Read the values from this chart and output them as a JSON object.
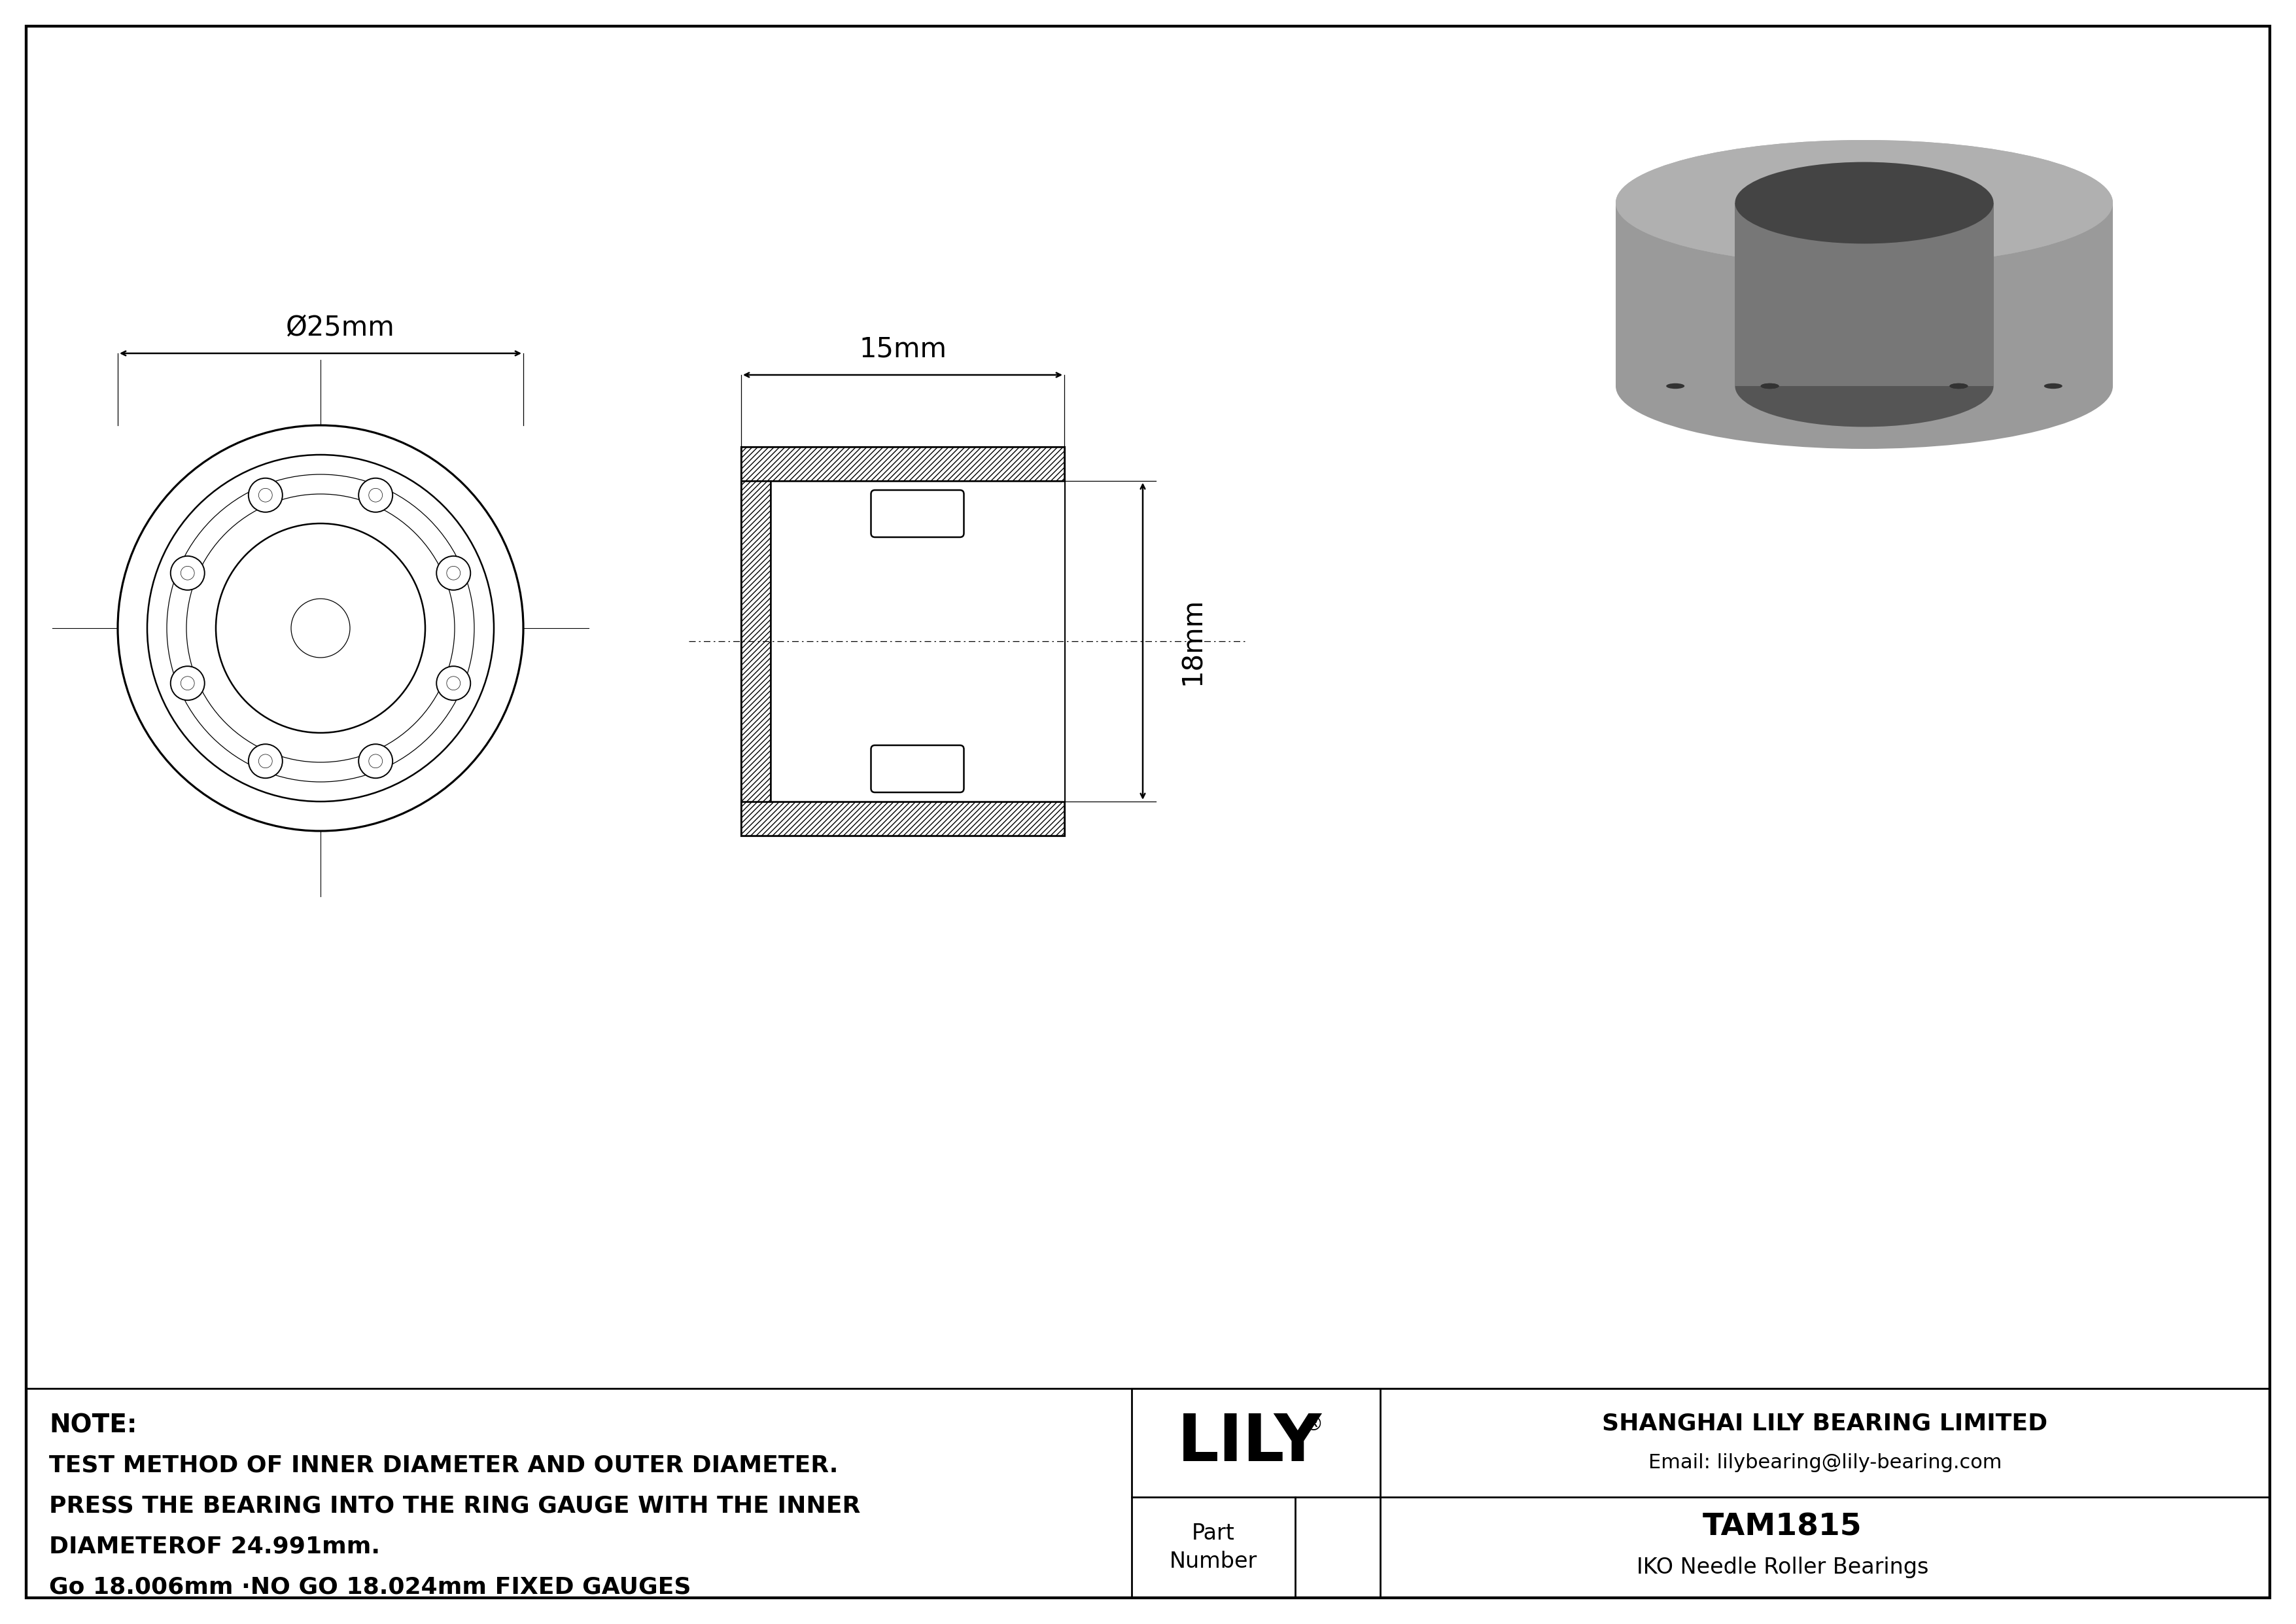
{
  "bg_color": "#ffffff",
  "line_color": "#000000",
  "note_lines": [
    "NOTE:",
    "TEST METHOD OF INNER DIAMETER AND OUTER DIAMETER.",
    "PRESS THE BEARING INTO THE RING GAUGE WITH THE INNER",
    "DIAMETEROF 24.991mm.",
    "Go 18.006mm ·NO GO 18.024mm FIXED GAUGES"
  ],
  "company_name": "SHANGHAI LILY BEARING LIMITED",
  "company_email": "Email: lilybearing@lily-bearing.com",
  "lily_logo": "LILY",
  "lily_registered": "®",
  "part_label": "Part\nNumber",
  "part_number": "TAM1815",
  "part_type": "IKO Needle Roller Bearings",
  "dim_outer": "Ø25mm",
  "dim_width": "15mm",
  "dim_height": "18mm",
  "border_lw": 3.0,
  "inner_border_lw": 2.0,
  "drawing_lw": 1.8,
  "thin_lw": 0.9,
  "centerline_lw": 0.8
}
